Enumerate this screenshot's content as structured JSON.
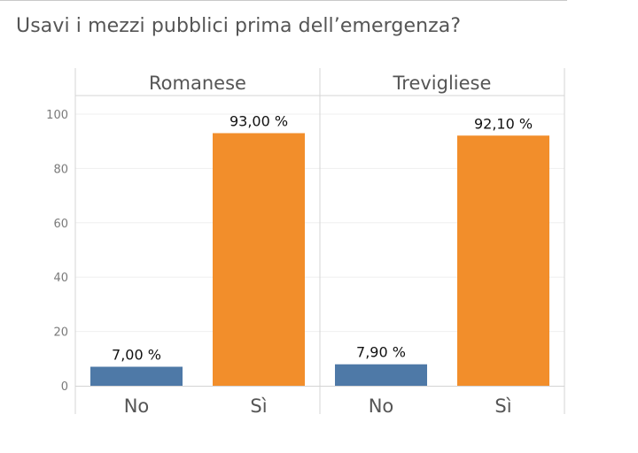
{
  "title": "Usavi i mezzi pubblici prima dell’emergenza?",
  "colors": {
    "No": "#4e79a7",
    "Sì": "#f28e2b"
  },
  "chart_data": {
    "type": "bar",
    "title": "Usavi i mezzi pubblici prima dell’emergenza?",
    "xlabel": "",
    "ylabel": "",
    "ylim": [
      0,
      100
    ],
    "yticks": [
      0,
      20,
      40,
      60,
      80,
      100
    ],
    "grid": true,
    "legend": "none",
    "panels": [
      {
        "name": "Romanese",
        "categories": [
          "No",
          "Sì"
        ],
        "values": [
          7.0,
          93.0
        ],
        "labels": [
          "7,00 %",
          "93,00 %"
        ]
      },
      {
        "name": "Trevigliese",
        "categories": [
          "No",
          "Sì"
        ],
        "values": [
          7.9,
          92.1
        ],
        "labels": [
          "7,90 %",
          "92,10 %"
        ]
      }
    ]
  }
}
